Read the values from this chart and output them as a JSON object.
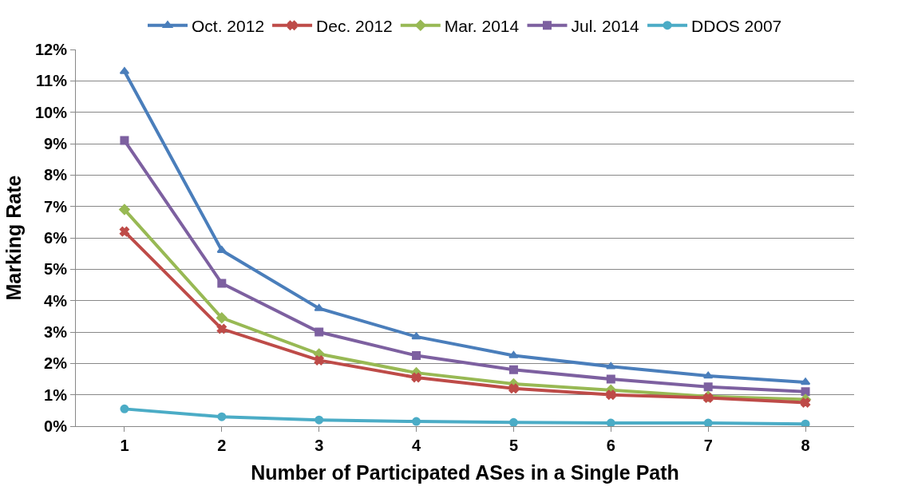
{
  "chart_data": {
    "type": "line",
    "xlabel": "Number of Participated ASes in a Single Path",
    "ylabel": "Marking Rate",
    "categories": [
      "1",
      "2",
      "3",
      "4",
      "5",
      "6",
      "7",
      "8"
    ],
    "series": [
      {
        "name": "Oct. 2012",
        "color": "#4a7ebb",
        "marker": "triangle",
        "values": [
          11.3,
          5.6,
          3.75,
          2.85,
          2.25,
          1.9,
          1.6,
          1.4
        ]
      },
      {
        "name": "Dec. 2012",
        "color": "#be4b48",
        "marker": "cross",
        "values": [
          6.2,
          3.1,
          2.1,
          1.55,
          1.2,
          1.0,
          0.9,
          0.75
        ]
      },
      {
        "name": "Mar. 2014",
        "color": "#98b954",
        "marker": "diamond",
        "values": [
          6.9,
          3.45,
          2.3,
          1.7,
          1.35,
          1.15,
          0.95,
          0.85
        ]
      },
      {
        "name": "Jul. 2014",
        "color": "#7d60a0",
        "marker": "square",
        "values": [
          9.1,
          4.55,
          3.0,
          2.25,
          1.8,
          1.5,
          1.25,
          1.1
        ]
      },
      {
        "name": "DDOS 2007",
        "color": "#4bacc6",
        "marker": "circle",
        "values": [
          0.55,
          0.3,
          0.2,
          0.15,
          0.12,
          0.1,
          0.1,
          0.07
        ]
      }
    ],
    "ylim": [
      0,
      12
    ],
    "yticks": [
      {
        "value": 0,
        "label": "0%"
      },
      {
        "value": 1,
        "label": "1%"
      },
      {
        "value": 2,
        "label": "2%"
      },
      {
        "value": 3,
        "label": "3%"
      },
      {
        "value": 4,
        "label": "4%"
      },
      {
        "value": 5,
        "label": "5%"
      },
      {
        "value": 6,
        "label": "6%"
      },
      {
        "value": 7,
        "label": "7%"
      },
      {
        "value": 8,
        "label": "8%"
      },
      {
        "value": 9,
        "label": "9%"
      },
      {
        "value": 10,
        "label": "10%"
      },
      {
        "value": 11,
        "label": "11%"
      },
      {
        "value": 12,
        "label": "12%"
      }
    ],
    "grid": "y",
    "legend": "top",
    "line_style": "solid"
  }
}
